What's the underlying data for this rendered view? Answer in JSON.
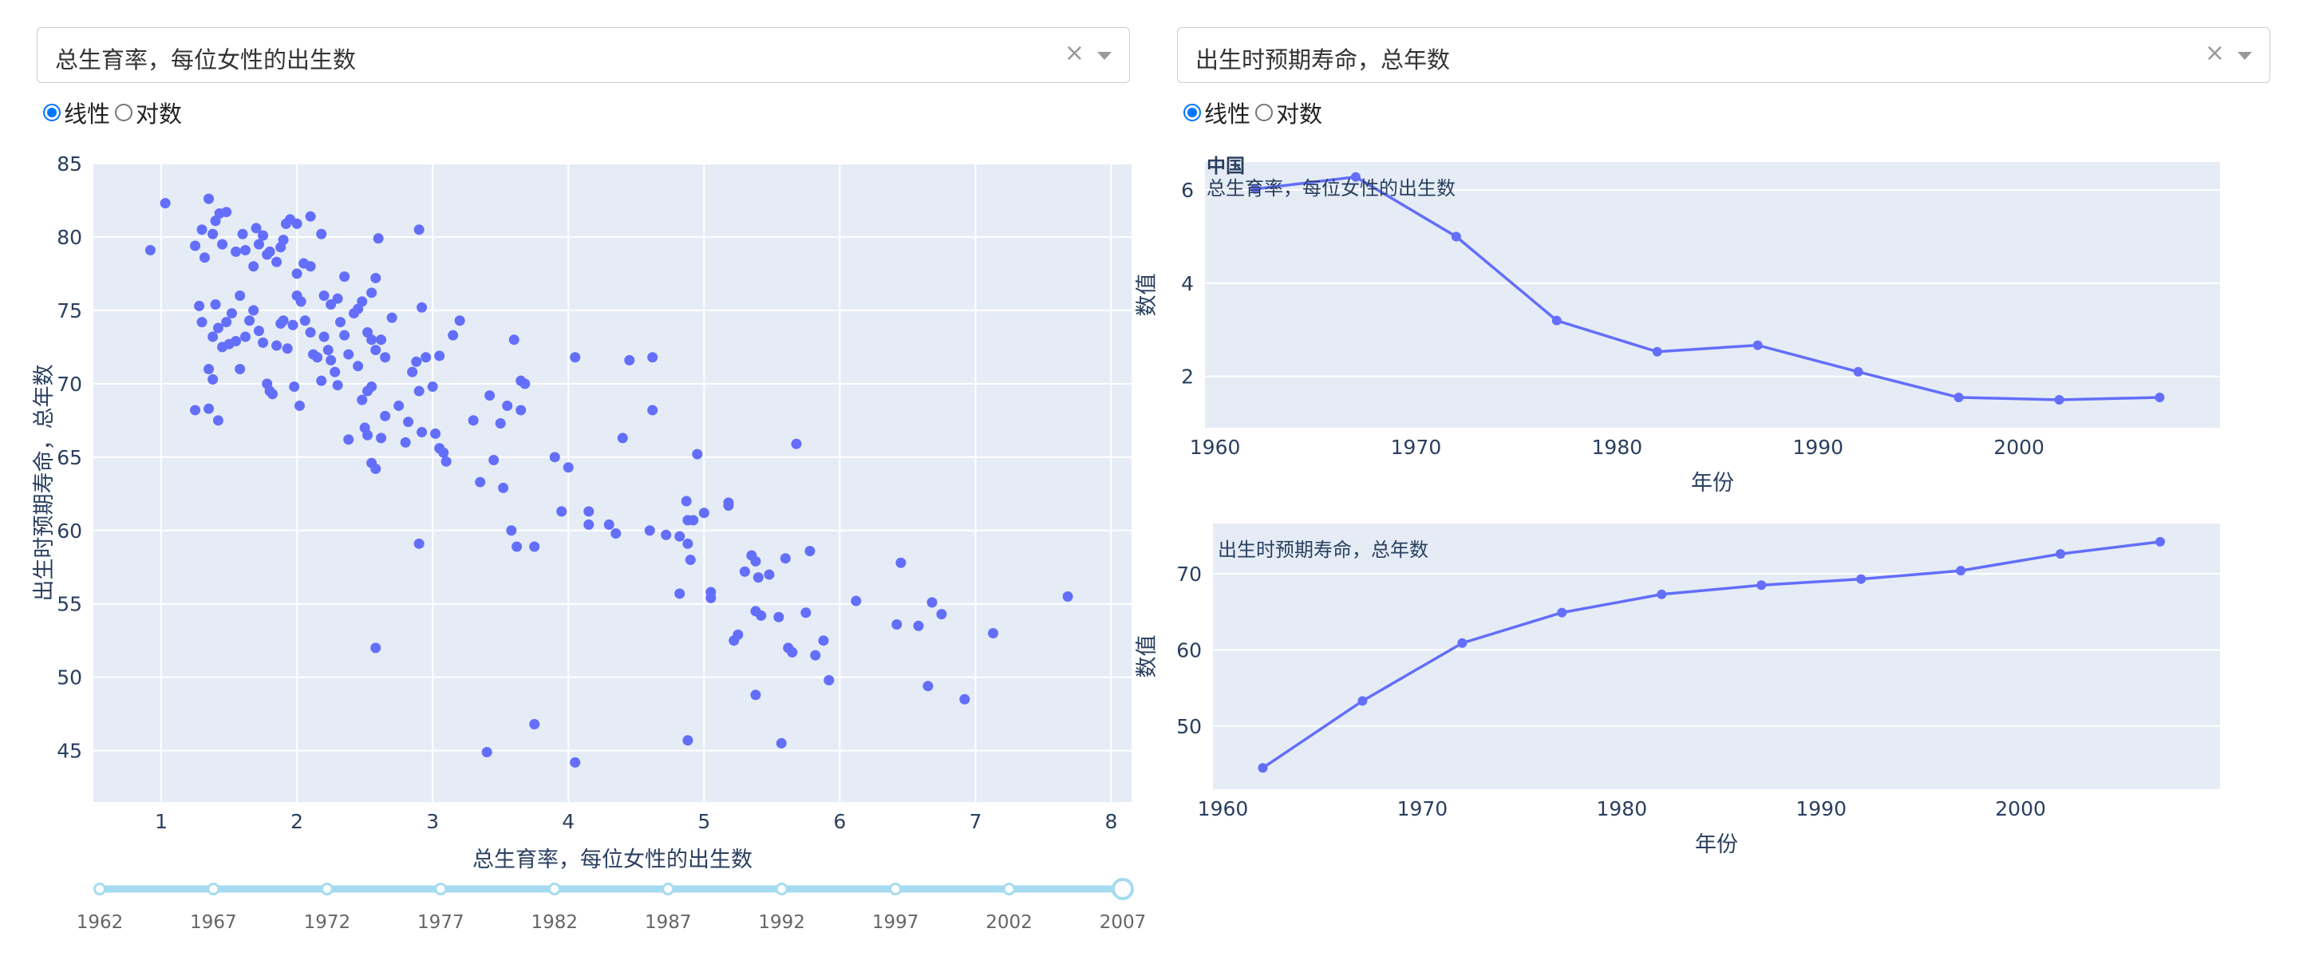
{
  "controls": {
    "xaxis_dropdown": {
      "value": "总生育率，每位女性的出生数",
      "clear": "×"
    },
    "yaxis_dropdown": {
      "value": "出生时预期寿命，总年数",
      "clear": "×"
    },
    "xaxis_scale": {
      "options": [
        "线性",
        "对数"
      ],
      "selected": "线性"
    },
    "yaxis_scale": {
      "options": [
        "线性",
        "对数"
      ],
      "selected": "线性"
    },
    "year_slider": {
      "marks": [
        "1962",
        "1967",
        "1972",
        "1977",
        "1982",
        "1987",
        "1992",
        "1997",
        "2002",
        "2007"
      ],
      "selected": "2007"
    }
  },
  "colors": {
    "marker": "#636efa",
    "plot_bg": "#e5ecf6",
    "grid": "#ffffff",
    "text": "#2a3f5f",
    "slider": "#a5dbf0"
  },
  "chart_data": [
    {
      "type": "scatter",
      "xlabel": "总生育率，每位女性的出生数",
      "ylabel": "出生时预期寿命，总年数",
      "xlim": [
        0.5,
        8.15
      ],
      "ylim": [
        41.5,
        85
      ],
      "xticks": [
        1,
        2,
        3,
        4,
        5,
        6,
        7,
        8
      ],
      "yticks": [
        45,
        50,
        55,
        60,
        65,
        70,
        75,
        80,
        85
      ],
      "grid": true,
      "points": [
        [
          0.92,
          79.1
        ],
        [
          1.03,
          82.3
        ],
        [
          1.25,
          68.2
        ],
        [
          1.35,
          68.3
        ],
        [
          1.25,
          79.4
        ],
        [
          1.3,
          80.5
        ],
        [
          1.35,
          82.6
        ],
        [
          1.4,
          81.1
        ],
        [
          1.43,
          81.6
        ],
        [
          1.48,
          81.7
        ],
        [
          1.38,
          80.2
        ],
        [
          1.32,
          78.6
        ],
        [
          1.45,
          79.5
        ],
        [
          1.55,
          79.0
        ],
        [
          1.6,
          80.2
        ],
        [
          1.62,
          79.1
        ],
        [
          1.7,
          80.6
        ],
        [
          1.72,
          79.5
        ],
        [
          1.75,
          80.1
        ],
        [
          1.8,
          79.0
        ],
        [
          1.85,
          78.3
        ],
        [
          1.9,
          79.8
        ],
        [
          1.95,
          81.2
        ],
        [
          2.0,
          80.9
        ],
        [
          2.1,
          81.4
        ],
        [
          2.18,
          80.2
        ],
        [
          1.92,
          80.9
        ],
        [
          1.88,
          79.3
        ],
        [
          1.78,
          78.8
        ],
        [
          1.68,
          78.0
        ],
        [
          1.58,
          76.0
        ],
        [
          1.52,
          74.8
        ],
        [
          1.48,
          74.2
        ],
        [
          1.42,
          73.8
        ],
        [
          1.38,
          73.2
        ],
        [
          1.35,
          71.0
        ],
        [
          1.38,
          70.3
        ],
        [
          1.42,
          67.5
        ],
        [
          1.28,
          75.3
        ],
        [
          1.3,
          74.2
        ],
        [
          1.4,
          75.4
        ],
        [
          1.45,
          72.5
        ],
        [
          1.5,
          72.7
        ],
        [
          1.55,
          72.9
        ],
        [
          1.58,
          71.0
        ],
        [
          1.62,
          73.2
        ],
        [
          1.65,
          74.3
        ],
        [
          1.68,
          75.0
        ],
        [
          1.72,
          73.6
        ],
        [
          1.75,
          72.8
        ],
        [
          1.78,
          70.0
        ],
        [
          1.8,
          69.5
        ],
        [
          1.82,
          69.3
        ],
        [
          1.85,
          72.6
        ],
        [
          1.88,
          74.1
        ],
        [
          1.9,
          74.3
        ],
        [
          1.93,
          72.4
        ],
        [
          1.97,
          74.0
        ],
        [
          2.0,
          76.0
        ],
        [
          2.03,
          75.6
        ],
        [
          2.06,
          74.3
        ],
        [
          2.1,
          73.5
        ],
        [
          2.12,
          72.0
        ],
        [
          2.15,
          71.8
        ],
        [
          2.18,
          70.2
        ],
        [
          2.2,
          73.2
        ],
        [
          2.23,
          72.3
        ],
        [
          2.25,
          71.6
        ],
        [
          2.28,
          70.8
        ],
        [
          2.3,
          69.9
        ],
        [
          2.32,
          74.2
        ],
        [
          2.35,
          73.3
        ],
        [
          2.38,
          72.0
        ],
        [
          1.98,
          69.8
        ],
        [
          2.02,
          68.5
        ],
        [
          2.0,
          77.5
        ],
        [
          2.05,
          78.2
        ],
        [
          2.1,
          78.0
        ],
        [
          2.2,
          76.0
        ],
        [
          2.25,
          75.4
        ],
        [
          2.3,
          75.8
        ],
        [
          2.35,
          77.3
        ],
        [
          2.42,
          74.8
        ],
        [
          2.45,
          75.1
        ],
        [
          2.48,
          75.6
        ],
        [
          2.52,
          73.5
        ],
        [
          2.55,
          73.0
        ],
        [
          2.58,
          72.3
        ],
        [
          2.62,
          73.0
        ],
        [
          2.65,
          71.8
        ],
        [
          2.55,
          76.2
        ],
        [
          2.58,
          77.2
        ],
        [
          2.6,
          79.9
        ],
        [
          2.7,
          74.5
        ],
        [
          2.75,
          68.5
        ],
        [
          2.62,
          66.3
        ],
        [
          2.65,
          67.8
        ],
        [
          2.5,
          67.0
        ],
        [
          2.52,
          66.5
        ],
        [
          2.55,
          64.6
        ],
        [
          2.58,
          64.2
        ],
        [
          2.48,
          68.9
        ],
        [
          2.52,
          69.5
        ],
        [
          2.55,
          69.8
        ],
        [
          2.45,
          71.2
        ],
        [
          2.38,
          66.2
        ],
        [
          2.8,
          66.0
        ],
        [
          2.82,
          67.4
        ],
        [
          2.85,
          70.8
        ],
        [
          2.88,
          71.5
        ],
        [
          2.9,
          69.5
        ],
        [
          2.92,
          66.7
        ],
        [
          2.95,
          71.8
        ],
        [
          3.0,
          69.8
        ],
        [
          3.02,
          66.6
        ],
        [
          3.05,
          71.9
        ],
        [
          3.08,
          65.3
        ],
        [
          3.1,
          64.7
        ],
        [
          3.15,
          73.3
        ],
        [
          3.2,
          74.3
        ],
        [
          3.05,
          65.6
        ],
        [
          2.92,
          75.2
        ],
        [
          2.9,
          80.5
        ],
        [
          2.9,
          59.1
        ],
        [
          2.58,
          52.0
        ],
        [
          3.3,
          67.5
        ],
        [
          3.35,
          63.3
        ],
        [
          3.42,
          69.2
        ],
        [
          3.45,
          64.8
        ],
        [
          3.5,
          67.3
        ],
        [
          3.52,
          62.9
        ],
        [
          3.55,
          68.5
        ],
        [
          3.58,
          60.0
        ],
        [
          3.6,
          73.0
        ],
        [
          3.62,
          58.9
        ],
        [
          3.65,
          70.2
        ],
        [
          3.68,
          70.0
        ],
        [
          3.65,
          68.2
        ],
        [
          3.75,
          58.9
        ],
        [
          3.4,
          44.9
        ],
        [
          3.75,
          46.8
        ],
        [
          3.9,
          65.0
        ],
        [
          3.95,
          61.3
        ],
        [
          4.0,
          64.3
        ],
        [
          4.05,
          71.8
        ],
        [
          4.15,
          61.3
        ],
        [
          4.15,
          60.4
        ],
        [
          4.3,
          60.4
        ],
        [
          4.35,
          59.8
        ],
        [
          4.4,
          66.3
        ],
        [
          4.45,
          71.6
        ],
        [
          4.6,
          60.0
        ],
        [
          4.62,
          68.2
        ],
        [
          4.62,
          71.8
        ],
        [
          4.72,
          59.7
        ],
        [
          4.82,
          59.6
        ],
        [
          4.82,
          55.7
        ],
        [
          4.87,
          62.0
        ],
        [
          4.88,
          59.1
        ],
        [
          4.9,
          58.0
        ],
        [
          4.88,
          60.7
        ],
        [
          4.92,
          60.7
        ],
        [
          4.95,
          65.2
        ],
        [
          5.0,
          61.2
        ],
        [
          5.05,
          55.4
        ],
        [
          5.05,
          55.8
        ],
        [
          5.18,
          61.7
        ],
        [
          5.18,
          61.9
        ],
        [
          5.22,
          52.5
        ],
        [
          5.25,
          52.9
        ],
        [
          5.3,
          57.2
        ],
        [
          5.35,
          58.3
        ],
        [
          5.38,
          57.9
        ],
        [
          5.38,
          54.5
        ],
        [
          5.4,
          56.8
        ],
        [
          5.42,
          54.2
        ],
        [
          5.48,
          57.0
        ],
        [
          5.55,
          54.1
        ],
        [
          5.6,
          58.1
        ],
        [
          5.62,
          52.0
        ],
        [
          5.65,
          51.7
        ],
        [
          5.68,
          65.9
        ],
        [
          5.75,
          54.4
        ],
        [
          5.78,
          58.6
        ],
        [
          5.82,
          51.5
        ],
        [
          5.88,
          52.5
        ],
        [
          5.92,
          49.8
        ],
        [
          6.12,
          55.2
        ],
        [
          6.42,
          53.6
        ],
        [
          6.45,
          57.8
        ],
        [
          6.58,
          53.5
        ],
        [
          6.65,
          49.4
        ],
        [
          6.68,
          55.1
        ],
        [
          6.75,
          54.3
        ],
        [
          6.92,
          48.5
        ],
        [
          7.13,
          53.0
        ],
        [
          7.68,
          55.5
        ],
        [
          5.38,
          48.8
        ],
        [
          4.05,
          44.2
        ],
        [
          4.88,
          45.7
        ],
        [
          5.57,
          45.5
        ]
      ]
    },
    {
      "type": "line",
      "country": "中国",
      "series_title": "总生育率，每位女性的出生数",
      "xlabel": "年份",
      "ylabel": "数值",
      "xlim": [
        1959.5,
        2010
      ],
      "ylim": [
        0.9,
        6.6
      ],
      "xticks": [
        1960,
        1970,
        1980,
        1990,
        2000
      ],
      "yticks": [
        2,
        4,
        6
      ],
      "x": [
        1962,
        1967,
        1972,
        1977,
        1982,
        1987,
        1992,
        1997,
        2002,
        2007
      ],
      "values": [
        6.02,
        6.28,
        5.0,
        3.2,
        2.53,
        2.67,
        2.1,
        1.55,
        1.5,
        1.55
      ]
    },
    {
      "type": "line",
      "series_title": "出生时预期寿命，总年数",
      "xlabel": "年份",
      "ylabel": "数值",
      "xlim": [
        1959.5,
        2010
      ],
      "ylim": [
        41.7,
        76.6
      ],
      "xticks": [
        1960,
        1970,
        1980,
        1990,
        2000
      ],
      "yticks": [
        50,
        60,
        70
      ],
      "x": [
        1962,
        1967,
        1972,
        1977,
        1982,
        1987,
        1992,
        1997,
        2002,
        2007
      ],
      "values": [
        44.5,
        53.3,
        60.9,
        64.9,
        67.3,
        68.5,
        69.3,
        70.4,
        72.6,
        74.2
      ]
    }
  ]
}
